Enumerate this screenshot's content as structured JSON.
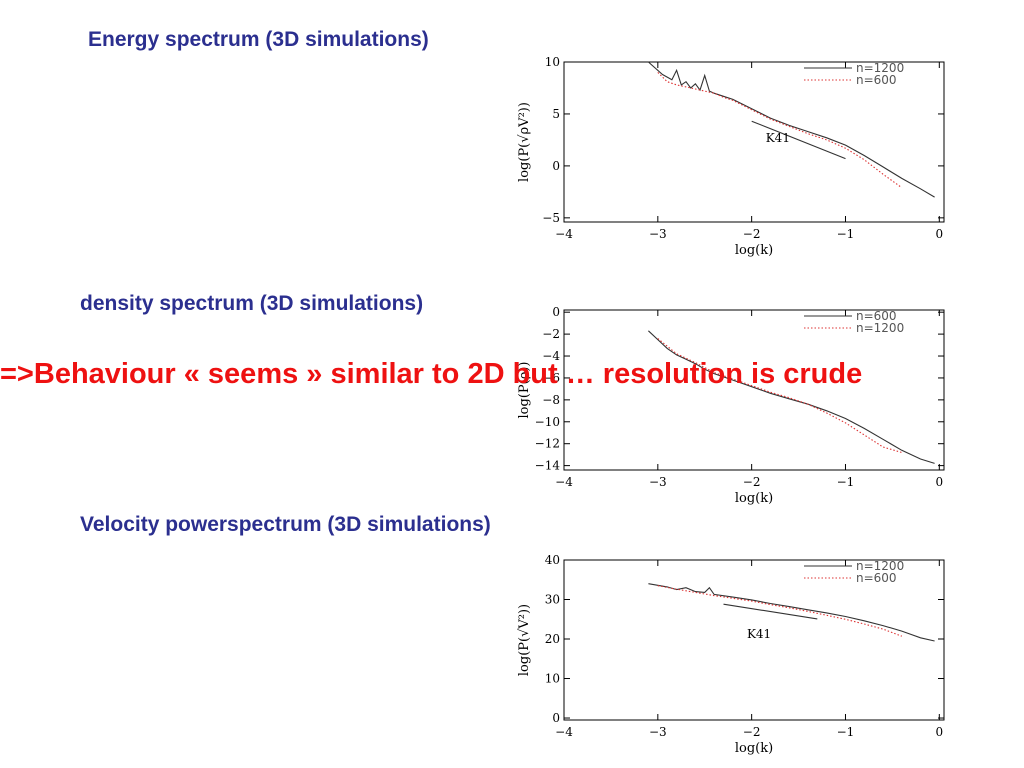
{
  "headings": {
    "energy": "Energy spectrum (3D simulations)",
    "density": "density spectrum (3D simulations)",
    "velocity": "Velocity powerspectrum (3D simulations)"
  },
  "overlay_text": "=>Behaviour « seems » similar to 2D but … resolution is crude",
  "colors": {
    "heading": "#2b2f8f",
    "overlay": "#ee1111",
    "series_solid": "#333333",
    "series_dotted": "#dd3333"
  },
  "chart_data": [
    {
      "type": "line",
      "title": "",
      "xlabel": "log(k)",
      "ylabel": "log(P(√ρV²))",
      "xlim": [
        -4,
        0.05
      ],
      "ylim": [
        -5.4,
        10
      ],
      "xticks": [
        -4,
        -3,
        -2,
        -1,
        0
      ],
      "yticks": [
        10,
        5,
        0,
        -5
      ],
      "grid": false,
      "legend_position": "top-right",
      "series": [
        {
          "name": "n=1200",
          "style": "solid",
          "x": [
            -3.1,
            -2.95,
            -2.85,
            -2.8,
            -2.75,
            -2.7,
            -2.65,
            -2.6,
            -2.55,
            -2.5,
            -2.45,
            -2.4,
            -2.3,
            -2.2,
            -2.0,
            -1.8,
            -1.6,
            -1.4,
            -1.2,
            -1.0,
            -0.8,
            -0.6,
            -0.4,
            -0.2,
            -0.05
          ],
          "y": [
            10.0,
            8.8,
            8.3,
            9.2,
            7.8,
            8.1,
            7.5,
            7.9,
            7.3,
            8.7,
            7.2,
            7.0,
            6.7,
            6.4,
            5.5,
            4.6,
            3.9,
            3.3,
            2.7,
            2.0,
            1.0,
            -0.1,
            -1.2,
            -2.2,
            -3.0
          ]
        },
        {
          "name": "n=600",
          "style": "dotted",
          "x": [
            -3.0,
            -2.9,
            -2.8,
            -2.7,
            -2.6,
            -2.5,
            -2.4,
            -2.3,
            -2.2,
            -2.0,
            -1.8,
            -1.6,
            -1.4,
            -1.2,
            -1.0,
            -0.8,
            -0.6,
            -0.4
          ],
          "y": [
            9.0,
            8.1,
            7.8,
            7.6,
            7.4,
            7.2,
            7.0,
            6.6,
            6.3,
            5.4,
            4.5,
            3.8,
            3.1,
            2.5,
            1.7,
            0.6,
            -0.8,
            -2.1
          ]
        },
        {
          "name": "K41",
          "style": "reference",
          "x": [
            -2.0,
            -1.0
          ],
          "y": [
            4.3,
            0.7
          ]
        }
      ],
      "annotations": [
        {
          "text": "K41",
          "x": -1.85,
          "y": 2.3
        }
      ]
    },
    {
      "type": "line",
      "title": "",
      "xlabel": "log(k)",
      "ylabel": "log(P(ρ))",
      "xlim": [
        -4,
        0.05
      ],
      "ylim": [
        -14.4,
        0.2
      ],
      "xticks": [
        -4,
        -3,
        -2,
        -1,
        0
      ],
      "yticks": [
        0,
        -2,
        -4,
        -6,
        -8,
        -10,
        -12,
        -14
      ],
      "grid": false,
      "legend_position": "top-right",
      "series": [
        {
          "name": "n=600",
          "style": "solid",
          "x": [
            -3.1,
            -3.0,
            -2.9,
            -2.8,
            -2.7,
            -2.6,
            -2.5,
            -2.4,
            -2.2,
            -2.0,
            -1.8,
            -1.6,
            -1.4,
            -1.2,
            -1.0,
            -0.8,
            -0.6,
            -0.4,
            -0.2,
            -0.05
          ],
          "y": [
            -1.7,
            -2.5,
            -3.3,
            -3.9,
            -4.3,
            -4.7,
            -5.2,
            -5.6,
            -6.2,
            -6.8,
            -7.4,
            -7.9,
            -8.4,
            -9.0,
            -9.7,
            -10.6,
            -11.6,
            -12.6,
            -13.4,
            -13.8
          ]
        },
        {
          "name": "n=1200",
          "style": "dotted",
          "x": [
            -3.0,
            -2.8,
            -2.6,
            -2.4,
            -2.2,
            -2.0,
            -1.8,
            -1.6,
            -1.4,
            -1.2,
            -1.0,
            -0.8,
            -0.6,
            -0.4
          ],
          "y": [
            -2.4,
            -3.8,
            -4.6,
            -5.5,
            -6.1,
            -6.7,
            -7.3,
            -7.8,
            -8.4,
            -9.2,
            -10.1,
            -11.2,
            -12.3,
            -12.8
          ]
        }
      ]
    },
    {
      "type": "line",
      "title": "",
      "xlabel": "log(k)",
      "ylabel": "log(P(√V²))",
      "xlim": [
        -4,
        0.05
      ],
      "ylim": [
        -0.5,
        40
      ],
      "xticks": [
        -4,
        -3,
        -2,
        -1,
        0
      ],
      "yticks": [
        40,
        30,
        20,
        10,
        0
      ],
      "grid": false,
      "legend_position": "top-right",
      "series": [
        {
          "name": "n=1200",
          "style": "solid",
          "x": [
            -3.1,
            -2.9,
            -2.8,
            -2.7,
            -2.6,
            -2.5,
            -2.45,
            -2.4,
            -2.2,
            -2.0,
            -1.8,
            -1.6,
            -1.4,
            -1.2,
            -1.0,
            -0.8,
            -0.6,
            -0.4,
            -0.2,
            -0.05
          ],
          "y": [
            34.0,
            33.2,
            32.5,
            33.0,
            32.0,
            31.8,
            33.0,
            31.3,
            30.6,
            29.9,
            29.0,
            28.2,
            27.4,
            26.6,
            25.7,
            24.6,
            23.4,
            22.0,
            20.3,
            19.5
          ]
        },
        {
          "name": "n=600",
          "style": "dotted",
          "x": [
            -3.0,
            -2.8,
            -2.6,
            -2.4,
            -2.2,
            -2.0,
            -1.8,
            -1.6,
            -1.4,
            -1.2,
            -1.0,
            -0.8,
            -0.6,
            -0.4
          ],
          "y": [
            33.5,
            32.6,
            31.8,
            31.0,
            30.3,
            29.6,
            28.7,
            27.9,
            27.0,
            26.0,
            25.0,
            23.8,
            22.5,
            20.7
          ]
        },
        {
          "name": "K41",
          "style": "reference",
          "x": [
            -2.3,
            -1.3
          ],
          "y": [
            28.8,
            25.1
          ]
        }
      ],
      "annotations": [
        {
          "text": "K41",
          "x": -2.05,
          "y": 20.2
        }
      ]
    }
  ]
}
